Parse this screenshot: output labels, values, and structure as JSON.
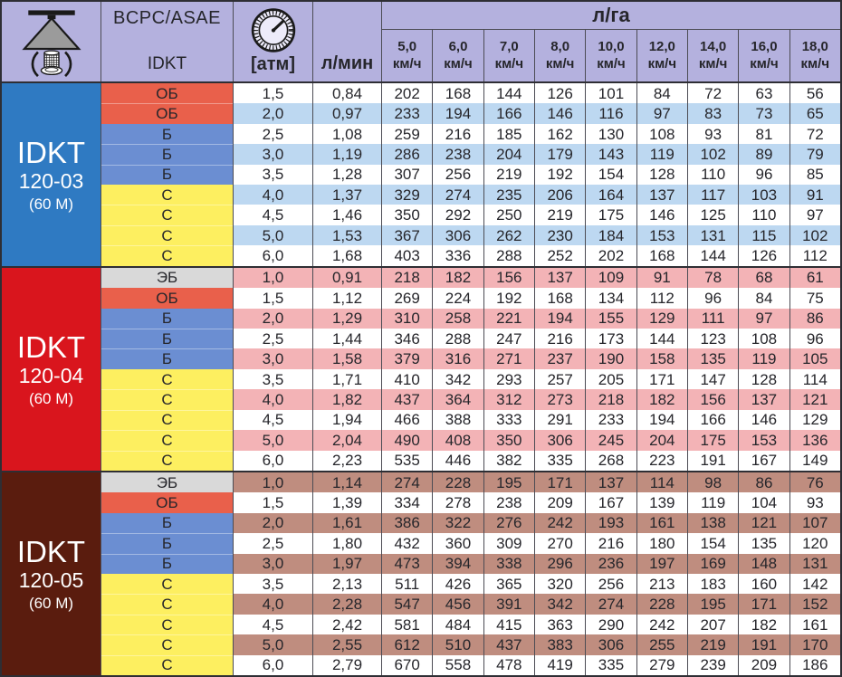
{
  "table": {
    "header": {
      "classification_top": "BCPC/ASAE",
      "classification_bottom": "IDKT",
      "pressure_unit": "[атм]",
      "flow_unit": "л/мин",
      "rate_unit": "л/га",
      "speed_unit": "км/ч",
      "speeds": [
        "5,0",
        "6,0",
        "7,0",
        "8,0",
        "10,0",
        "12,0",
        "14,0",
        "16,0",
        "18,0"
      ],
      "icons": {
        "nozzle": "spray-nozzle-icon",
        "gauge": "pressure-gauge-icon"
      }
    },
    "colors": {
      "header_bg": "#b4b1de",
      "grid_line": "#4c4c54",
      "outer_border": "#2e2e34",
      "class_colors": {
        "ЭБ": "#d9d9d9",
        "ОБ": "#e9604b",
        "Б": "#6b8ed2",
        "С": "#fdef60"
      }
    },
    "groups": [
      {
        "model": "IDKT",
        "size": "120-03",
        "note": "(60 M)",
        "bg": "#2f7ac2",
        "stripe": "#bdd8f1",
        "stripe_parity": 1,
        "rows": [
          {
            "cls": "ОБ",
            "atm": "1,5",
            "lmin": "0,84",
            "lga": [
              202,
              168,
              144,
              126,
              101,
              84,
              72,
              63,
              56
            ]
          },
          {
            "cls": "ОБ",
            "atm": "2,0",
            "lmin": "0,97",
            "lga": [
              233,
              194,
              166,
              146,
              116,
              97,
              83,
              73,
              65
            ]
          },
          {
            "cls": "Б",
            "atm": "2,5",
            "lmin": "1,08",
            "lga": [
              259,
              216,
              185,
              162,
              130,
              108,
              93,
              81,
              72
            ]
          },
          {
            "cls": "Б",
            "atm": "3,0",
            "lmin": "1,19",
            "lga": [
              286,
              238,
              204,
              179,
              143,
              119,
              102,
              89,
              79
            ]
          },
          {
            "cls": "Б",
            "atm": "3,5",
            "lmin": "1,28",
            "lga": [
              307,
              256,
              219,
              192,
              154,
              128,
              110,
              96,
              85
            ]
          },
          {
            "cls": "С",
            "atm": "4,0",
            "lmin": "1,37",
            "lga": [
              329,
              274,
              235,
              206,
              164,
              137,
              117,
              103,
              91
            ]
          },
          {
            "cls": "С",
            "atm": "4,5",
            "lmin": "1,46",
            "lga": [
              350,
              292,
              250,
              219,
              175,
              146,
              125,
              110,
              97
            ]
          },
          {
            "cls": "С",
            "atm": "5,0",
            "lmin": "1,53",
            "lga": [
              367,
              306,
              262,
              230,
              184,
              153,
              131,
              115,
              102
            ]
          },
          {
            "cls": "С",
            "atm": "6,0",
            "lmin": "1,68",
            "lga": [
              403,
              336,
              288,
              252,
              202,
              168,
              144,
              126,
              112
            ]
          }
        ]
      },
      {
        "model": "IDKT",
        "size": "120-04",
        "note": "(60 M)",
        "bg": "#d9151d",
        "stripe": "#f3b3b6",
        "stripe_parity": 0,
        "rows": [
          {
            "cls": "ЭБ",
            "atm": "1,0",
            "lmin": "0,91",
            "lga": [
              218,
              182,
              156,
              137,
              109,
              91,
              78,
              68,
              61
            ]
          },
          {
            "cls": "ОБ",
            "atm": "1,5",
            "lmin": "1,12",
            "lga": [
              269,
              224,
              192,
              168,
              134,
              112,
              96,
              84,
              75
            ]
          },
          {
            "cls": "Б",
            "atm": "2,0",
            "lmin": "1,29",
            "lga": [
              310,
              258,
              221,
              194,
              155,
              129,
              111,
              97,
              86
            ]
          },
          {
            "cls": "Б",
            "atm": "2,5",
            "lmin": "1,44",
            "lga": [
              346,
              288,
              247,
              216,
              173,
              144,
              123,
              108,
              96
            ]
          },
          {
            "cls": "Б",
            "atm": "3,0",
            "lmin": "1,58",
            "lga": [
              379,
              316,
              271,
              237,
              190,
              158,
              135,
              119,
              105
            ]
          },
          {
            "cls": "С",
            "atm": "3,5",
            "lmin": "1,71",
            "lga": [
              410,
              342,
              293,
              257,
              205,
              171,
              147,
              128,
              114
            ]
          },
          {
            "cls": "С",
            "atm": "4,0",
            "lmin": "1,82",
            "lga": [
              437,
              364,
              312,
              273,
              218,
              182,
              156,
              137,
              121
            ]
          },
          {
            "cls": "С",
            "atm": "4,5",
            "lmin": "1,94",
            "lga": [
              466,
              388,
              333,
              291,
              233,
              194,
              166,
              146,
              129
            ]
          },
          {
            "cls": "С",
            "atm": "5,0",
            "lmin": "2,04",
            "lga": [
              490,
              408,
              350,
              306,
              245,
              204,
              175,
              153,
              136
            ]
          },
          {
            "cls": "С",
            "atm": "6,0",
            "lmin": "2,23",
            "lga": [
              535,
              446,
              382,
              335,
              268,
              223,
              191,
              167,
              149
            ]
          }
        ]
      },
      {
        "model": "IDKT",
        "size": "120-05",
        "note": "(60 M)",
        "bg": "#5a1c0e",
        "stripe": "#bf8d7f",
        "stripe_parity": 0,
        "rows": [
          {
            "cls": "ЭБ",
            "atm": "1,0",
            "lmin": "1,14",
            "lga": [
              274,
              228,
              195,
              171,
              137,
              114,
              98,
              86,
              76
            ]
          },
          {
            "cls": "ОБ",
            "atm": "1,5",
            "lmin": "1,39",
            "lga": [
              334,
              278,
              238,
              209,
              167,
              139,
              119,
              104,
              93
            ]
          },
          {
            "cls": "Б",
            "atm": "2,0",
            "lmin": "1,61",
            "lga": [
              386,
              322,
              276,
              242,
              193,
              161,
              138,
              121,
              107
            ]
          },
          {
            "cls": "Б",
            "atm": "2,5",
            "lmin": "1,80",
            "lga": [
              432,
              360,
              309,
              270,
              216,
              180,
              154,
              135,
              120
            ]
          },
          {
            "cls": "Б",
            "atm": "3,0",
            "lmin": "1,97",
            "lga": [
              473,
              394,
              338,
              296,
              236,
              197,
              169,
              148,
              131
            ]
          },
          {
            "cls": "С",
            "atm": "3,5",
            "lmin": "2,13",
            "lga": [
              511,
              426,
              365,
              320,
              256,
              213,
              183,
              160,
              142
            ]
          },
          {
            "cls": "С",
            "atm": "4,0",
            "lmin": "2,28",
            "lga": [
              547,
              456,
              391,
              342,
              274,
              228,
              195,
              171,
              152
            ]
          },
          {
            "cls": "С",
            "atm": "4,5",
            "lmin": "2,42",
            "lga": [
              581,
              484,
              415,
              363,
              290,
              242,
              207,
              182,
              161
            ]
          },
          {
            "cls": "С",
            "atm": "5,0",
            "lmin": "2,55",
            "lga": [
              612,
              510,
              437,
              383,
              306,
              255,
              219,
              191,
              170
            ]
          },
          {
            "cls": "С",
            "atm": "6,0",
            "lmin": "2,79",
            "lga": [
              670,
              558,
              478,
              419,
              335,
              279,
              239,
              209,
              186
            ]
          }
        ]
      }
    ]
  }
}
